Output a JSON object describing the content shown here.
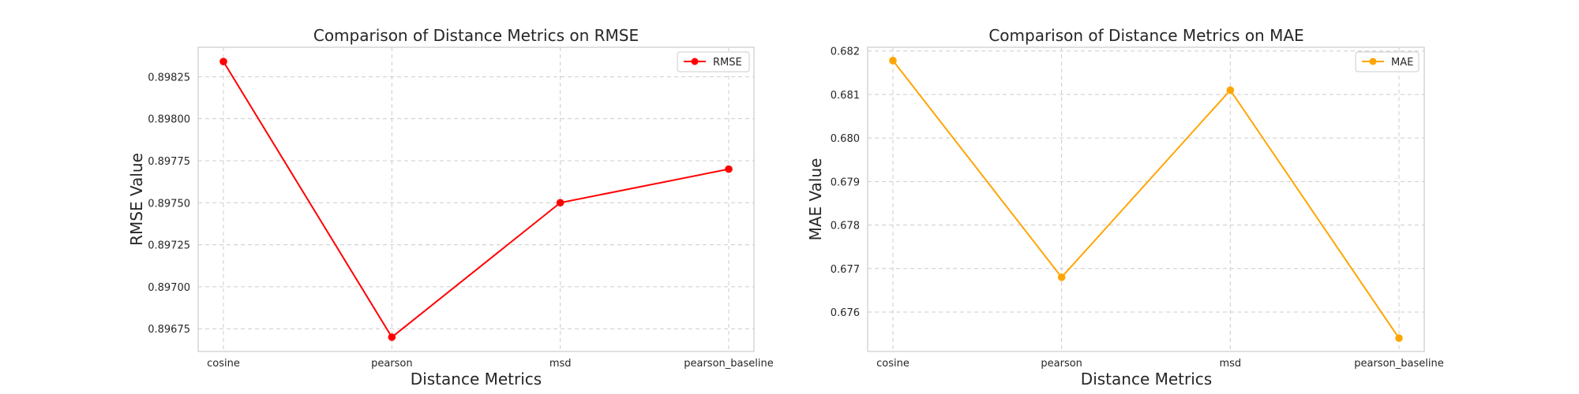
{
  "chart_data": [
    {
      "type": "line",
      "title": "Comparison of Distance Metrics on RMSE",
      "xlabel": "Distance Metrics",
      "ylabel": "RMSE Value",
      "categories": [
        "cosine",
        "pearson",
        "msd",
        "pearson_baseline"
      ],
      "series": [
        {
          "name": "RMSE",
          "values": [
            0.89834,
            0.8967,
            0.8975,
            0.8977
          ],
          "color": "#ff0000",
          "marker": "circle"
        }
      ],
      "yticks": [
        0.89675,
        0.897,
        0.89725,
        0.8975,
        0.89775,
        0.898,
        0.89825
      ],
      "ytick_labels": [
        "0.89675",
        "0.89700",
        "0.89725",
        "0.89750",
        "0.89775",
        "0.89800",
        "0.89825"
      ],
      "ylim": [
        0.896615,
        0.898425
      ],
      "grid": true,
      "legend": "top-right"
    },
    {
      "type": "line",
      "title": "Comparison of Distance Metrics on MAE",
      "xlabel": "Distance Metrics",
      "ylabel": "MAE Value",
      "categories": [
        "cosine",
        "pearson",
        "msd",
        "pearson_baseline"
      ],
      "series": [
        {
          "name": "MAE",
          "values": [
            0.68178,
            0.6768,
            0.6811,
            0.6754
          ],
          "color": "#ffa500",
          "marker": "circle"
        }
      ],
      "yticks": [
        0.676,
        0.677,
        0.678,
        0.679,
        0.68,
        0.681,
        0.682
      ],
      "ytick_labels": [
        "0.676",
        "0.677",
        "0.678",
        "0.679",
        "0.680",
        "0.681",
        "0.682"
      ],
      "ylim": [
        0.675095,
        0.682085
      ],
      "grid": true,
      "legend": "top-right"
    }
  ]
}
